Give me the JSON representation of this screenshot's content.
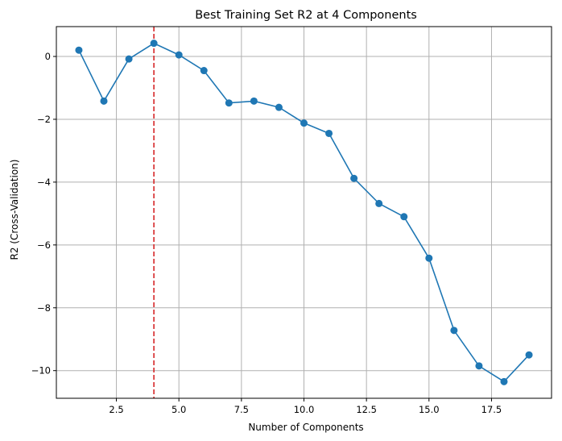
{
  "chart_data": {
    "type": "line",
    "title": "Best Training Set R2 at 4 Components",
    "xlabel": "Number of Components",
    "ylabel": "R2 (Cross-Validation)",
    "x": [
      1,
      2,
      3,
      4,
      5,
      6,
      7,
      8,
      9,
      10,
      11,
      12,
      13,
      14,
      15,
      16,
      17,
      18,
      19
    ],
    "series": [
      {
        "values": [
          0.2,
          -1.42,
          -0.08,
          0.42,
          0.05,
          -0.45,
          -1.48,
          -1.42,
          -1.62,
          -2.12,
          -2.45,
          -3.88,
          -4.68,
          -5.1,
          -6.42,
          -8.72,
          -9.85,
          -10.35,
          -9.5
        ],
        "color": "#1f77b4",
        "marker": "circle"
      }
    ],
    "vline": {
      "x": 4,
      "color": "#d62728",
      "style": "dashed"
    },
    "xlim": [
      0.1,
      19.9
    ],
    "ylim": [
      -10.88,
      0.95
    ],
    "xticks": [
      "2.5",
      "5.0",
      "7.5",
      "10.0",
      "12.5",
      "15.0",
      "17.5"
    ],
    "xtick_values": [
      2.5,
      5,
      7.5,
      10,
      12.5,
      15,
      17.5
    ],
    "yticks": [
      "0",
      "−2",
      "−4",
      "−6",
      "−8",
      "−10"
    ],
    "ytick_values": [
      0,
      -2,
      -4,
      -6,
      -8,
      -10
    ],
    "grid": true,
    "legend": "none"
  }
}
